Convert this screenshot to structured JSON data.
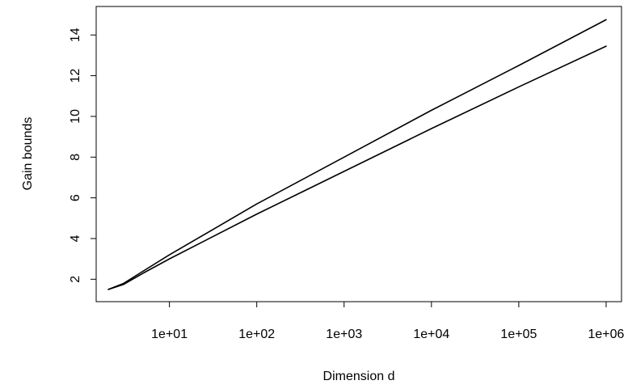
{
  "chart_data": {
    "type": "line",
    "title": "",
    "xlabel": "Dimension d",
    "ylabel": "Gain bounds",
    "x_scale": "log",
    "xlim": [
      1.45,
      1500000
    ],
    "ylim": [
      0.9,
      15.4
    ],
    "x_ticks": [
      10,
      100,
      1000,
      10000,
      100000,
      1000000
    ],
    "x_tick_labels": [
      "1e+01",
      "1e+02",
      "1e+03",
      "1e+04",
      "1e+05",
      "1e+06"
    ],
    "y_ticks": [
      2,
      4,
      6,
      8,
      10,
      12,
      14
    ],
    "y_tick_labels": [
      "2",
      "4",
      "6",
      "8",
      "10",
      "12",
      "14"
    ],
    "grid": false,
    "series": [
      {
        "color": "#000000",
        "x": [
          2,
          3,
          5,
          10,
          100,
          1000,
          10000,
          100000,
          1000000
        ],
        "y": [
          1.5,
          1.8,
          2.4,
          3.2,
          5.7,
          8.0,
          10.3,
          12.5,
          14.75
        ]
      },
      {
        "color": "#000000",
        "x": [
          2,
          3,
          5,
          10,
          100,
          1000,
          10000,
          100000,
          1000000
        ],
        "y": [
          1.5,
          1.75,
          2.3,
          3.0,
          5.2,
          7.3,
          9.4,
          11.45,
          13.45
        ]
      }
    ]
  }
}
